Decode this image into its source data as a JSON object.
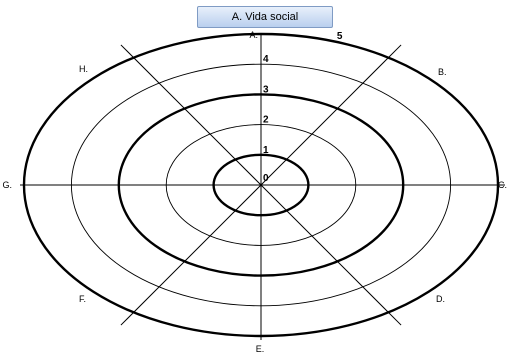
{
  "title": "A. Vida social",
  "axes": [
    "A.",
    "B.",
    "C.",
    "D.",
    "E.",
    "F.",
    "G.",
    "H."
  ],
  "scale": [
    "0",
    "1",
    "2",
    "3",
    "4",
    "5"
  ],
  "ring_count": 5,
  "highlighted_rings": [
    1,
    3,
    5
  ]
}
